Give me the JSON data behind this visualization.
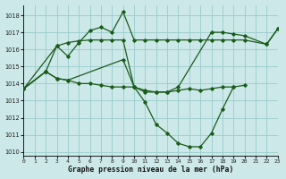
{
  "title": "Graphe pression niveau de la mer (hPa)",
  "bg_color": "#cce8e8",
  "grid_color": "#99cccc",
  "line_color": "#1a5c1a",
  "xlim": [
    0,
    23
  ],
  "ylim": [
    1009.8,
    1018.6
  ],
  "xticks": [
    0,
    1,
    2,
    3,
    4,
    5,
    6,
    7,
    8,
    9,
    10,
    11,
    12,
    13,
    14,
    15,
    16,
    17,
    18,
    19,
    20,
    21,
    22,
    23
  ],
  "yticks": [
    1010,
    1011,
    1012,
    1013,
    1014,
    1015,
    1016,
    1017,
    1018
  ],
  "series": [
    {
      "x": [
        0,
        3,
        4,
        5,
        6,
        7,
        8,
        9,
        10,
        11,
        12,
        13,
        14,
        15,
        16,
        17,
        18,
        19,
        20,
        22,
        23
      ],
      "y": [
        1013.7,
        1016.2,
        1015.6,
        1016.4,
        1017.1,
        1017.3,
        1017.0,
        1018.2,
        1016.55,
        1016.55,
        1016.55,
        1016.55,
        1016.55,
        1016.55,
        1016.55,
        1016.55,
        1016.55,
        1016.55,
        1016.55,
        1016.3,
        1017.2
      ]
    },
    {
      "x": [
        0,
        2,
        3,
        4,
        5,
        6,
        7,
        8,
        9,
        10,
        11,
        12,
        13,
        14,
        17,
        18,
        19,
        20,
        22,
        23
      ],
      "y": [
        1013.7,
        1014.7,
        1016.2,
        1016.4,
        1016.5,
        1016.55,
        1016.55,
        1016.55,
        1016.55,
        1013.8,
        1013.5,
        1013.5,
        1013.5,
        1013.8,
        1017.0,
        1017.0,
        1016.9,
        1016.8,
        1016.3,
        1017.2
      ]
    },
    {
      "x": [
        0,
        2,
        3,
        4,
        9,
        10,
        11,
        12,
        13,
        14,
        15,
        16,
        17,
        18,
        19
      ],
      "y": [
        1013.7,
        1014.7,
        1014.3,
        1014.2,
        1015.4,
        1013.8,
        1012.9,
        1011.6,
        1011.1,
        1010.5,
        1010.3,
        1010.3,
        1011.1,
        1012.5,
        1013.8
      ]
    },
    {
      "x": [
        0,
        2,
        3,
        4,
        5,
        6,
        7,
        8,
        9,
        10,
        11,
        12,
        13,
        14,
        15,
        16,
        17,
        18,
        19,
        20
      ],
      "y": [
        1013.7,
        1014.7,
        1014.3,
        1014.2,
        1014.0,
        1014.0,
        1013.9,
        1013.8,
        1013.8,
        1013.8,
        1013.6,
        1013.5,
        1013.5,
        1013.6,
        1013.7,
        1013.6,
        1013.7,
        1013.8,
        1013.8,
        1013.9
      ]
    }
  ]
}
